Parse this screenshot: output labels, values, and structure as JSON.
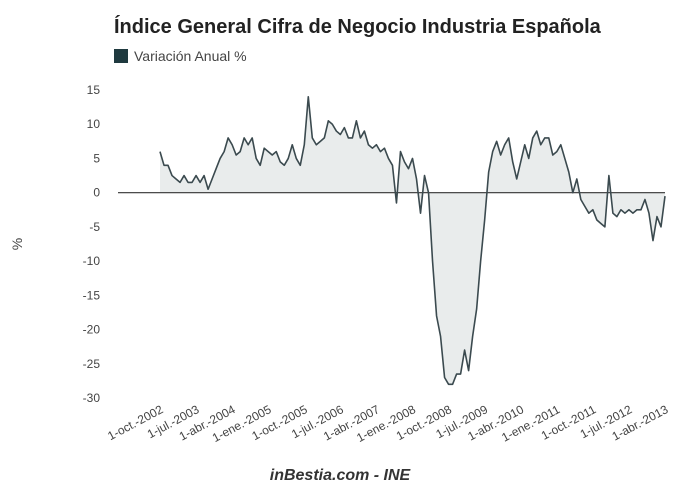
{
  "chart_data": {
    "type": "area",
    "title": "Índice General Cifra de Negocio Industria Española",
    "legend": {
      "label": "Variación Anual %",
      "placement": "top-left"
    },
    "ylabel": "%",
    "xlabel": "",
    "source": "inBestia.com - INE",
    "ylim": [
      -30,
      15
    ],
    "yticks": [
      15,
      10,
      5,
      0,
      -5,
      -10,
      -15,
      -20,
      -25,
      -30
    ],
    "xticks": [
      "1-oct.-2002",
      "1-jul.-2003",
      "1-abr.-2004",
      "1-ene.-2005",
      "1-oct.-2005",
      "1-jul.-2006",
      "1-abr.-2007",
      "1-ene.-2008",
      "1-oct.-2008",
      "1-jul.-2009",
      "1-abr.-2010",
      "1-ene.-2011",
      "1-oct.-2011",
      "1-jul.-2012",
      "1-abr.-2013"
    ],
    "grid": false,
    "colors": {
      "line": "#3b4a4f",
      "fill": "#e9ecec",
      "legend_swatch": "#1f3a3f",
      "zero_line": "#333333"
    },
    "series": [
      {
        "name": "Variación Anual %",
        "x_start": "2002-10",
        "frequency": "monthly",
        "values": [
          6,
          4,
          4,
          2.5,
          2,
          1.5,
          2.5,
          1.5,
          1.5,
          2.5,
          1.5,
          2.5,
          0.5,
          2,
          3.5,
          5,
          6,
          8,
          7,
          5.5,
          6,
          8,
          7,
          8,
          5,
          4,
          6.5,
          6,
          5.5,
          6,
          4.5,
          4,
          5,
          7,
          5,
          4,
          7,
          14,
          8,
          7,
          7.5,
          8,
          10.5,
          10,
          9,
          8.5,
          9.5,
          8,
          8,
          10.5,
          8,
          9,
          7,
          6.5,
          7,
          6,
          6.5,
          5,
          4,
          -1.5,
          6,
          4.5,
          3.5,
          5,
          2,
          -3,
          2.5,
          0,
          -10,
          -18,
          -21,
          -27,
          -28,
          -28,
          -26.5,
          -26.5,
          -23,
          -26,
          -21,
          -17,
          -10,
          -4,
          3,
          6,
          7.5,
          5.5,
          7,
          8,
          4.5,
          2,
          4.5,
          7,
          5,
          8,
          9,
          7,
          8,
          8,
          5.5,
          6,
          7,
          5,
          3,
          0,
          2,
          -1,
          -2,
          -3,
          -2.5,
          -4,
          -4.5,
          -5,
          2.5,
          -3,
          -3.5,
          -2.5,
          -3,
          -2.5,
          -3,
          -2.5,
          -2.5,
          -1,
          -3,
          -7,
          -3.5,
          -5,
          -0.5
        ]
      }
    ]
  }
}
